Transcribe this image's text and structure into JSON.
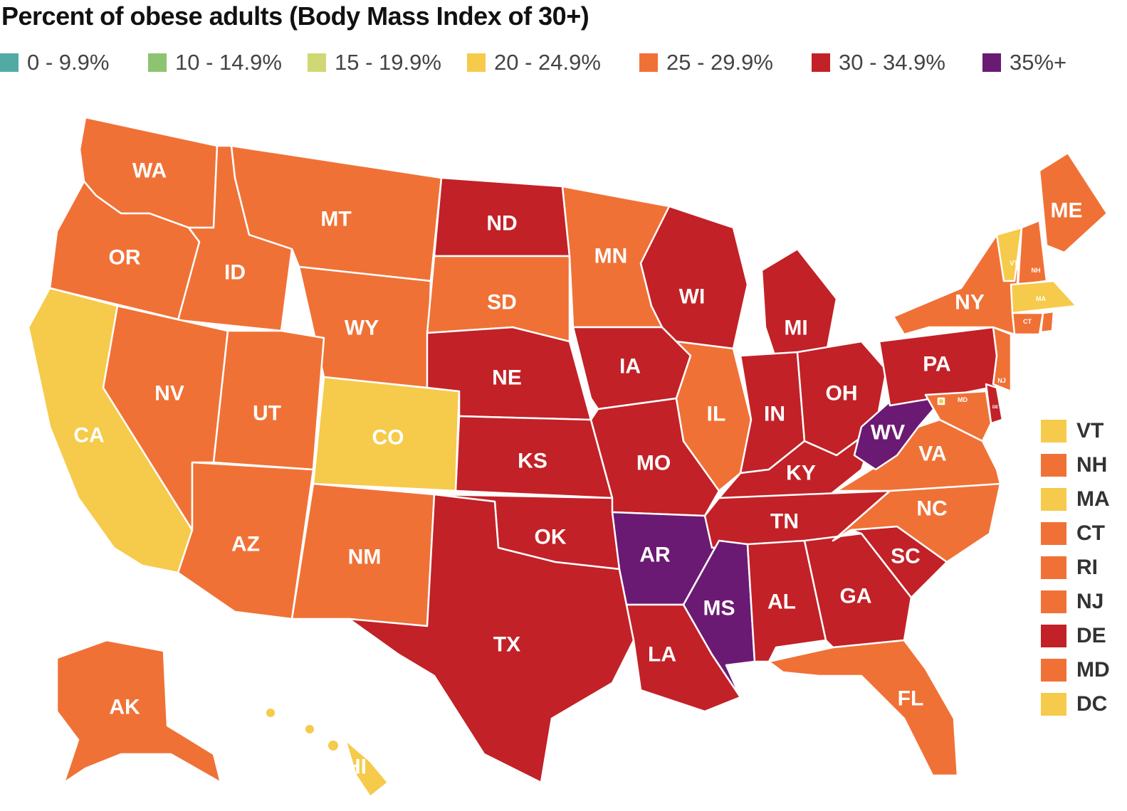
{
  "title": "Percent of obese adults (Body Mass Index of 30+)",
  "legend": [
    {
      "label": "0 - 9.9%",
      "color": "#52AAA5"
    },
    {
      "label": "10 - 14.9%",
      "color": "#8DC46F"
    },
    {
      "label": "15 - 19.9%",
      "color": "#CFD873"
    },
    {
      "label": "20 - 24.9%",
      "color": "#F6CA4A"
    },
    {
      "label": "25 - 29.9%",
      "color": "#F07136"
    },
    {
      "label": "30 - 34.9%",
      "color": "#C22127"
    },
    {
      "label": "35%+",
      "color": "#6B1A73"
    }
  ],
  "states": [
    {
      "abbr": "WA",
      "bin": "25 - 29.9%"
    },
    {
      "abbr": "OR",
      "bin": "25 - 29.9%"
    },
    {
      "abbr": "CA",
      "bin": "20 - 24.9%"
    },
    {
      "abbr": "ID",
      "bin": "25 - 29.9%"
    },
    {
      "abbr": "NV",
      "bin": "25 - 29.9%"
    },
    {
      "abbr": "MT",
      "bin": "25 - 29.9%"
    },
    {
      "abbr": "WY",
      "bin": "25 - 29.9%"
    },
    {
      "abbr": "UT",
      "bin": "25 - 29.9%"
    },
    {
      "abbr": "CO",
      "bin": "20 - 24.9%"
    },
    {
      "abbr": "AZ",
      "bin": "25 - 29.9%"
    },
    {
      "abbr": "NM",
      "bin": "25 - 29.9%"
    },
    {
      "abbr": "ND",
      "bin": "30 - 34.9%"
    },
    {
      "abbr": "SD",
      "bin": "25 - 29.9%"
    },
    {
      "abbr": "NE",
      "bin": "30 - 34.9%"
    },
    {
      "abbr": "KS",
      "bin": "30 - 34.9%"
    },
    {
      "abbr": "OK",
      "bin": "30 - 34.9%"
    },
    {
      "abbr": "TX",
      "bin": "30 - 34.9%"
    },
    {
      "abbr": "MN",
      "bin": "25 - 29.9%"
    },
    {
      "abbr": "IA",
      "bin": "30 - 34.9%"
    },
    {
      "abbr": "MO",
      "bin": "30 - 34.9%"
    },
    {
      "abbr": "AR",
      "bin": "35%+"
    },
    {
      "abbr": "LA",
      "bin": "30 - 34.9%"
    },
    {
      "abbr": "WI",
      "bin": "30 - 34.9%"
    },
    {
      "abbr": "IL",
      "bin": "25 - 29.9%"
    },
    {
      "abbr": "MI",
      "bin": "30 - 34.9%"
    },
    {
      "abbr": "IN",
      "bin": "30 - 34.9%"
    },
    {
      "abbr": "OH",
      "bin": "30 - 34.9%"
    },
    {
      "abbr": "KY",
      "bin": "30 - 34.9%"
    },
    {
      "abbr": "TN",
      "bin": "30 - 34.9%"
    },
    {
      "abbr": "MS",
      "bin": "35%+"
    },
    {
      "abbr": "AL",
      "bin": "30 - 34.9%"
    },
    {
      "abbr": "GA",
      "bin": "30 - 34.9%"
    },
    {
      "abbr": "FL",
      "bin": "25 - 29.9%"
    },
    {
      "abbr": "SC",
      "bin": "30 - 34.9%"
    },
    {
      "abbr": "NC",
      "bin": "25 - 29.9%"
    },
    {
      "abbr": "VA",
      "bin": "25 - 29.9%"
    },
    {
      "abbr": "WV",
      "bin": "35%+"
    },
    {
      "abbr": "PA",
      "bin": "30 - 34.9%"
    },
    {
      "abbr": "NY",
      "bin": "25 - 29.9%"
    },
    {
      "abbr": "ME",
      "bin": "25 - 29.9%"
    },
    {
      "abbr": "VT",
      "bin": "20 - 24.9%"
    },
    {
      "abbr": "NH",
      "bin": "25 - 29.9%"
    },
    {
      "abbr": "MA",
      "bin": "20 - 24.9%"
    },
    {
      "abbr": "CT",
      "bin": "25 - 29.9%"
    },
    {
      "abbr": "RI",
      "bin": "25 - 29.9%"
    },
    {
      "abbr": "NJ",
      "bin": "25 - 29.9%"
    },
    {
      "abbr": "DE",
      "bin": "30 - 34.9%"
    },
    {
      "abbr": "MD",
      "bin": "25 - 29.9%"
    },
    {
      "abbr": "DC",
      "bin": "20 - 24.9%"
    },
    {
      "abbr": "AK",
      "bin": "25 - 29.9%"
    },
    {
      "abbr": "HI",
      "bin": "20 - 24.9%"
    }
  ],
  "side_legend": [
    "VT",
    "NH",
    "MA",
    "CT",
    "RI",
    "NJ",
    "DE",
    "MD",
    "DC"
  ]
}
